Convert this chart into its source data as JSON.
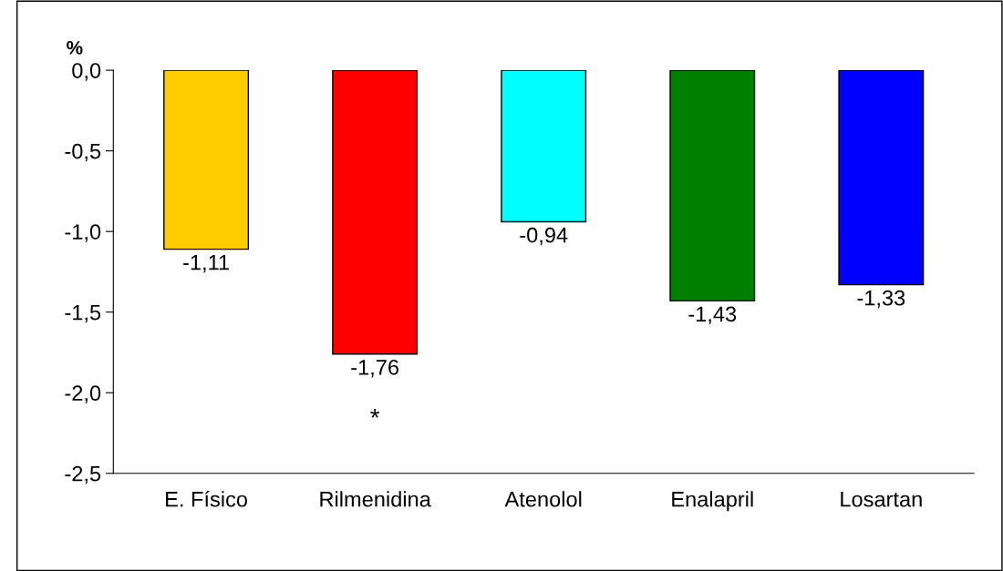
{
  "chart_data": {
    "type": "bar",
    "ylabel": "%",
    "categories": [
      "E. Físico",
      "Rilmenidina",
      "Atenolol",
      "Enalapril",
      "Losartan"
    ],
    "values": [
      -1.11,
      -1.76,
      -0.94,
      -1.43,
      -1.33
    ],
    "colors": [
      "#ffcc00",
      "#ff0000",
      "#00ffff",
      "#008000",
      "#0000ff"
    ],
    "value_labels": [
      "-1,11",
      "-1,76",
      "-0,94",
      "-1,43",
      "-1,33"
    ],
    "annotations": [
      "*"
    ],
    "ylim": [
      -2.5,
      0
    ],
    "yticks": [
      {
        "value": 0,
        "label": "0,0"
      },
      {
        "value": -0.5,
        "label": "-0,5"
      },
      {
        "value": -1,
        "label": "-1,0"
      },
      {
        "value": -1.5,
        "label": "-1,5"
      },
      {
        "value": -2,
        "label": "-2,0"
      },
      {
        "value": -2.5,
        "label": "-2,5"
      }
    ],
    "grid": false,
    "legend": false
  }
}
